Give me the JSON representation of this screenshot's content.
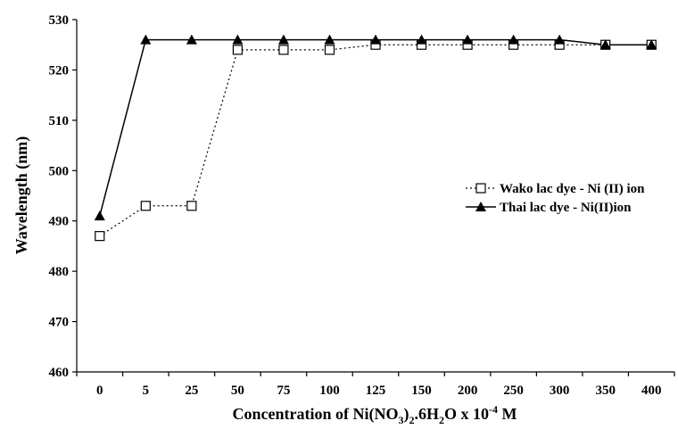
{
  "chart_data": {
    "type": "line",
    "title": "",
    "xlabel": {
      "prefix": "Concentration of Ni(NO",
      "sub1": "3",
      "mid1": ")",
      "sub2": "2",
      "mid2": ".6H",
      "sub3": "2",
      "mid3": "O x 10",
      "sup": "-4",
      "suffix": " M"
    },
    "ylabel": "Wavelength (nm)",
    "categories": [
      "0",
      "5",
      "25",
      "50",
      "75",
      "100",
      "125",
      "150",
      "200",
      "250",
      "300",
      "350",
      "400"
    ],
    "yticks": [
      "460",
      "470",
      "480",
      "490",
      "500",
      "510",
      "520",
      "530"
    ],
    "ylim": [
      460,
      530
    ],
    "grid": false,
    "legend_position": "right",
    "series": [
      {
        "name": "Wako lac dye - Ni (II) ion",
        "marker": "open-square",
        "line": "dotted",
        "color": "#000000",
        "values": [
          487,
          493,
          493,
          524,
          524,
          524,
          525,
          525,
          525,
          525,
          525,
          525,
          525
        ]
      },
      {
        "name": "Thai lac dye - Ni(II)ion",
        "marker": "filled-triangle",
        "line": "solid",
        "color": "#000000",
        "values": [
          491,
          526,
          526,
          526,
          526,
          526,
          526,
          526,
          526,
          526,
          526,
          525,
          525
        ]
      }
    ]
  }
}
